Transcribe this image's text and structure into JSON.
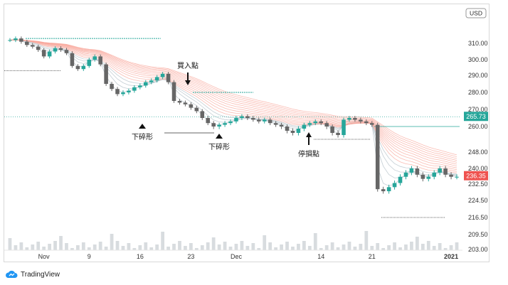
{
  "currency": "USD",
  "brand": {
    "name": "TradingView",
    "icon": "tradingview-cloud-icon"
  },
  "chart_data": {
    "type": "candlestick",
    "title": "",
    "xlabel": "",
    "ylabel": "",
    "price_ticks": [
      310.0,
      300.0,
      290.0,
      280.0,
      270.0,
      260.0,
      248.0,
      240.0,
      232.5,
      224.5,
      216.5,
      209.5,
      203.0
    ],
    "x_ticks": [
      {
        "label": "Nov",
        "idx": 6
      },
      {
        "label": "9",
        "idx": 14
      },
      {
        "label": "16",
        "idx": 23
      },
      {
        "label": "23",
        "idx": 32
      },
      {
        "label": "Dec",
        "idx": 40
      },
      {
        "label": "14",
        "idx": 55
      },
      {
        "label": "21",
        "idx": 64
      },
      {
        "label": "2021",
        "idx": 78
      }
    ],
    "price_badges": [
      {
        "value": "265.73",
        "color": "#26a69a"
      },
      {
        "value": "236.35",
        "color": "#ef5350"
      }
    ],
    "closes": [
      312,
      313,
      311,
      309,
      308,
      306,
      302,
      305,
      307,
      306,
      304,
      296,
      294,
      296,
      300,
      302,
      297,
      285,
      282,
      279,
      280,
      281,
      283,
      284,
      286,
      287,
      289,
      291,
      286,
      275,
      274,
      273,
      271,
      269,
      265,
      262,
      260,
      261,
      262,
      263,
      265,
      266,
      265,
      264,
      263,
      264,
      262,
      261,
      260,
      258,
      257,
      259,
      261,
      262,
      263,
      262,
      260,
      257,
      256,
      264,
      265,
      264,
      263,
      262,
      261,
      230,
      229,
      231,
      233,
      236,
      238,
      240,
      237,
      235,
      236,
      238,
      240,
      237,
      236,
      236
    ],
    "annotations": [
      {
        "text": "買入點",
        "kind": "arrow-down"
      },
      {
        "text": "下碎形",
        "kind": "triangle-up"
      },
      {
        "text": "下碎形",
        "kind": "triangle-up"
      },
      {
        "text": "停損點",
        "kind": "arrow-up"
      }
    ]
  }
}
